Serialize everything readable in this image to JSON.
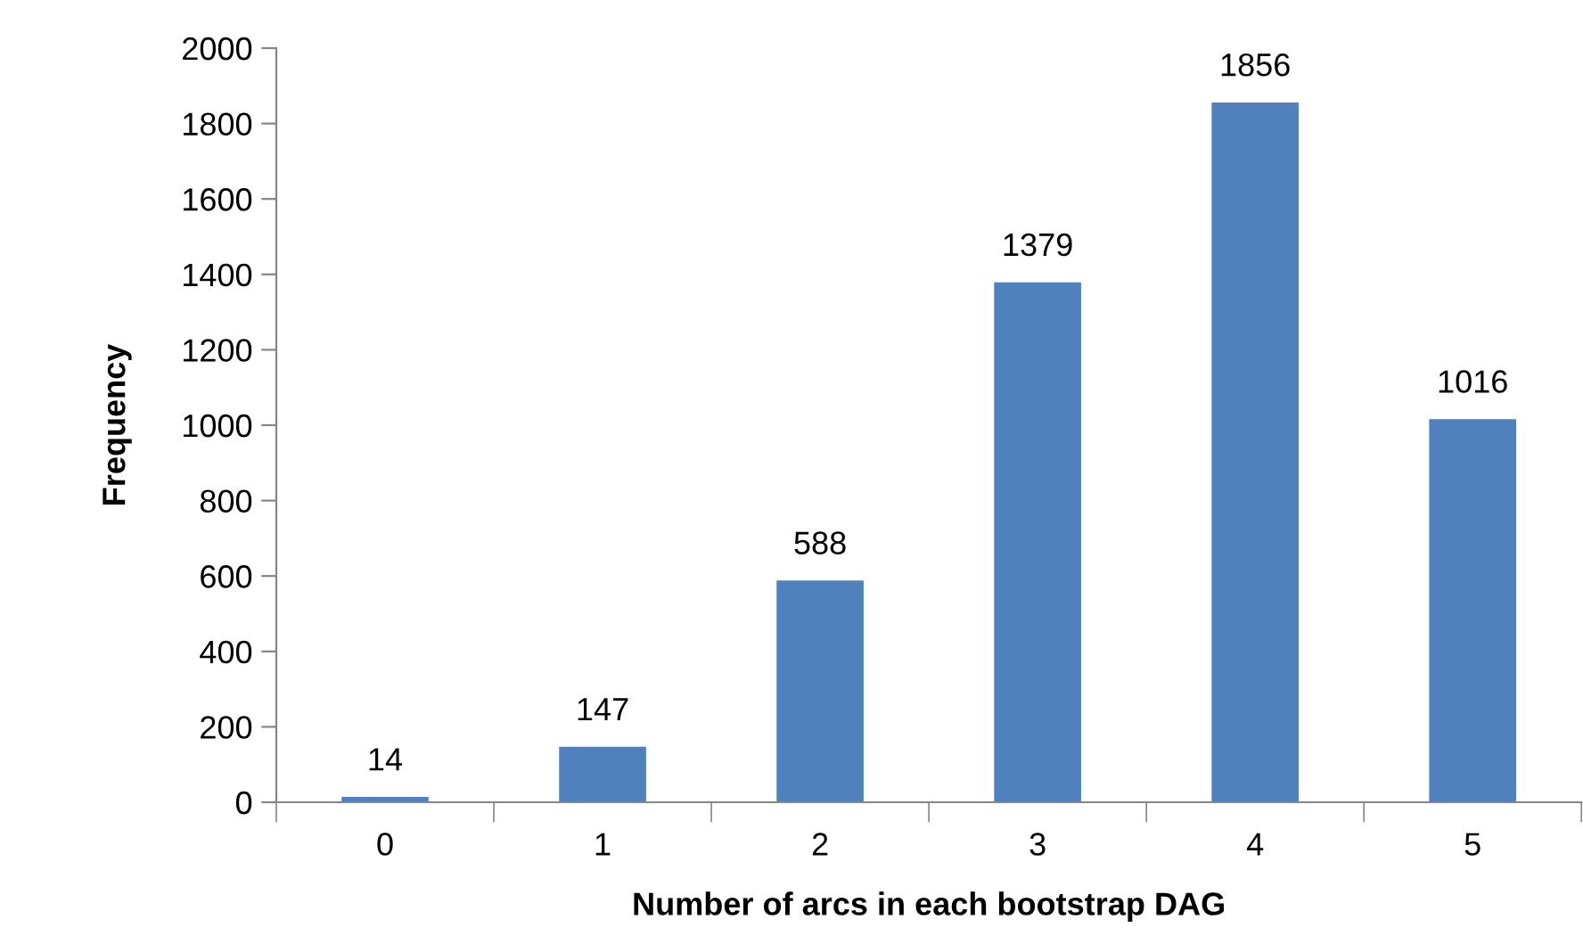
{
  "chart_data": {
    "type": "bar",
    "xlabel": "Number of arcs in each bootstrap DAG",
    "ylabel": "Frequency",
    "categories": [
      "0",
      "1",
      "2",
      "3",
      "4",
      "5"
    ],
    "values": [
      14,
      147,
      588,
      1379,
      1856,
      1016
    ],
    "color": "#4f81bd",
    "ylim": [
      0,
      2000
    ],
    "yticks": [
      0,
      200,
      400,
      600,
      800,
      1000,
      1200,
      1400,
      1600,
      1800,
      2000
    ],
    "data_labels": true,
    "grid": false,
    "legend": false
  }
}
